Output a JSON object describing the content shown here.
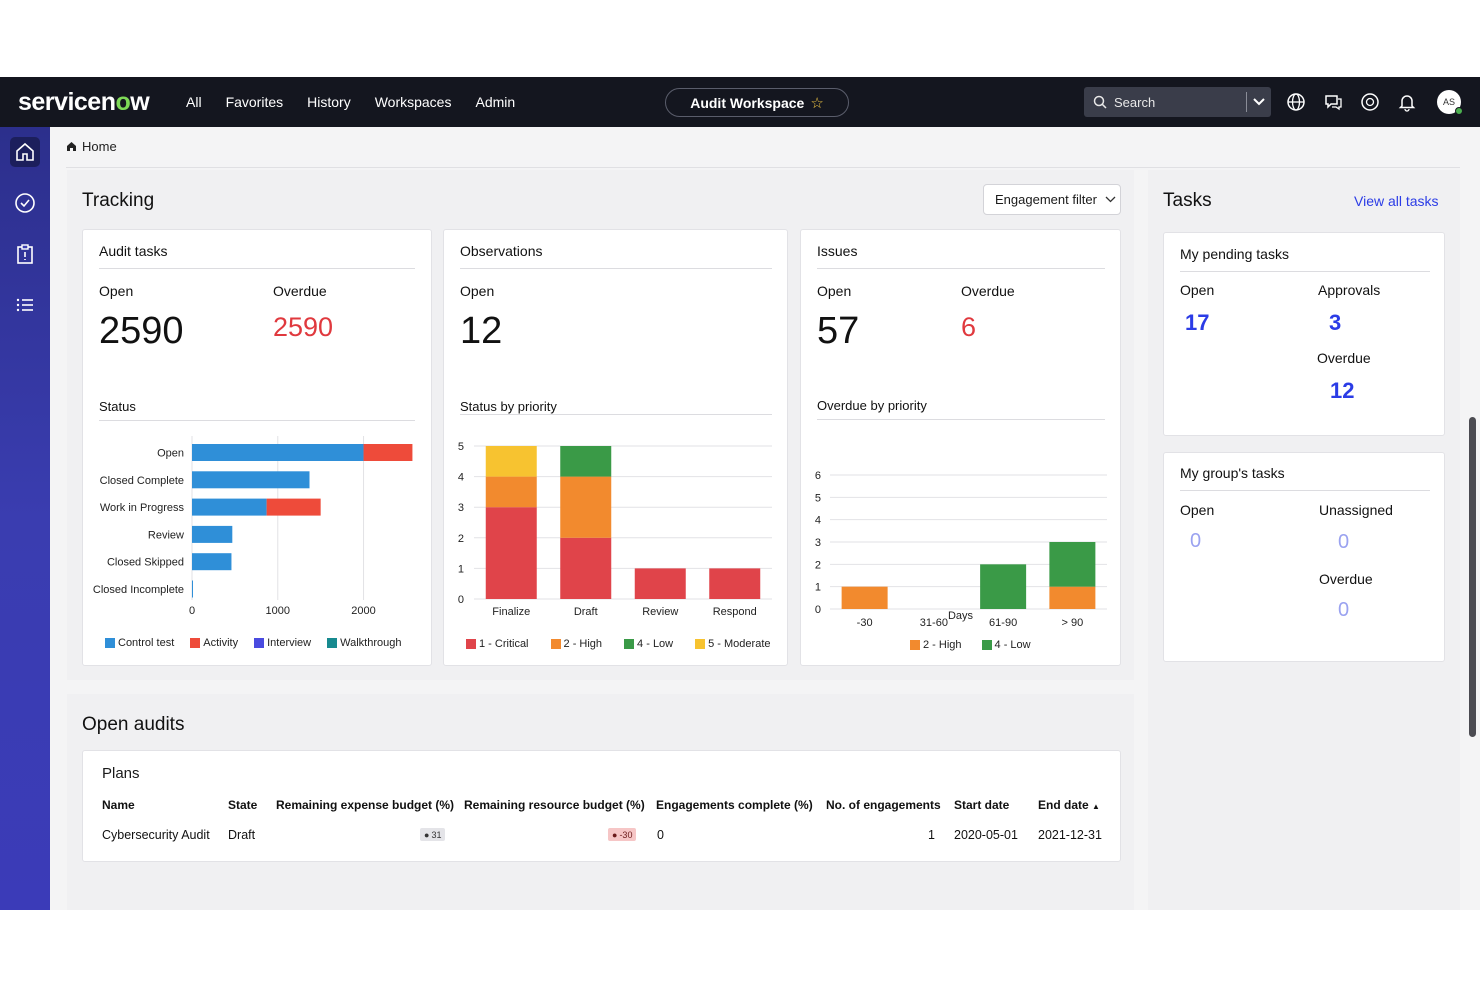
{
  "nav": {
    "logo_a": "servicen",
    "logo_o": "o",
    "logo_b": "w",
    "links": [
      "All",
      "Favorites",
      "History",
      "Workspaces",
      "Admin"
    ],
    "workspace": "Audit Workspace",
    "search_label": "Search",
    "avatar_initials": "AS"
  },
  "breadcrumb": {
    "home": "Home"
  },
  "tracking": {
    "title": "Tracking",
    "filter": "Engagement filter",
    "audit_tasks": {
      "title": "Audit tasks",
      "open_label": "Open",
      "open_value": "2590",
      "overdue_label": "Overdue",
      "overdue_value": "2590",
      "chart_title": "Status"
    },
    "observations": {
      "title": "Observations",
      "open_label": "Open",
      "open_value": "12",
      "chart_title": "Status by priority"
    },
    "issues": {
      "title": "Issues",
      "open_label": "Open",
      "open_value": "57",
      "overdue_label": "Overdue",
      "overdue_value": "6",
      "chart_title": "Overdue by priority"
    }
  },
  "tasks": {
    "title": "Tasks",
    "view_all": "View all tasks",
    "pending": {
      "title": "My pending tasks",
      "open_label": "Open",
      "open_value": "17",
      "approvals_label": "Approvals",
      "approvals_value": "3",
      "overdue_label": "Overdue",
      "overdue_value": "12"
    },
    "group": {
      "title": "My group's tasks",
      "open_label": "Open",
      "open_value": "0",
      "unassigned_label": "Unassigned",
      "unassigned_value": "0",
      "overdue_label": "Overdue",
      "overdue_value": "0"
    }
  },
  "open_audits": {
    "title": "Open audits",
    "plans_title": "Plans",
    "headers": [
      "Name",
      "State",
      "Remaining expense budget (%)",
      "Remaining resource budget (%)",
      "Engagements complete (%)",
      "No. of engagements",
      "Start date",
      "End date"
    ],
    "row": {
      "name": "Cybersecurity Audit",
      "state": "Draft",
      "expense": "31",
      "resource": "-30",
      "complete": "0",
      "engagements": "1",
      "start": "2020-05-01",
      "end": "2021-12-31"
    }
  },
  "colors": {
    "blue": "#2f8fd8",
    "red": "#ee4b3a",
    "critical": "#e0444a",
    "high": "#f28a2e",
    "low": "#3a9a47",
    "moderate": "#f7c330",
    "interview": "#4a4be0",
    "walkthrough": "#178a8f"
  },
  "chart_data": [
    {
      "type": "bar",
      "orientation": "horizontal",
      "title": "Status",
      "categories": [
        "Open",
        "Closed Complete",
        "Work in Progress",
        "Review",
        "Closed Skipped",
        "Closed Incomplete"
      ],
      "series": [
        {
          "name": "Control test",
          "values": [
            2000,
            1370,
            870,
            470,
            460,
            10
          ]
        },
        {
          "name": "Activity",
          "values": [
            570,
            0,
            630,
            0,
            0,
            0
          ]
        },
        {
          "name": "Interview",
          "values": [
            0,
            0,
            0,
            0,
            0,
            0
          ]
        },
        {
          "name": "Walkthrough",
          "values": [
            0,
            0,
            0,
            0,
            0,
            0
          ]
        }
      ],
      "x_ticks": [
        "0",
        "1000",
        "2000"
      ],
      "xlim": [
        0,
        2600
      ]
    },
    {
      "type": "bar",
      "stacked": true,
      "title": "Status by priority",
      "categories": [
        "Finalize",
        "Draft",
        "Review",
        "Respond"
      ],
      "series": [
        {
          "name": "1 - Critical",
          "values": [
            3,
            2,
            1,
            1
          ]
        },
        {
          "name": "2 - High",
          "values": [
            1,
            2,
            0,
            0
          ]
        },
        {
          "name": "4 - Low",
          "values": [
            0,
            1,
            0,
            0
          ]
        },
        {
          "name": "5 - Moderate",
          "values": [
            1,
            0,
            0,
            0
          ]
        }
      ],
      "y_ticks": [
        "0",
        "1",
        "2",
        "3",
        "4",
        "5"
      ],
      "ylim": [
        0,
        5
      ]
    },
    {
      "type": "bar",
      "stacked": true,
      "title": "Overdue by priority",
      "xlabel": "Days",
      "categories": [
        "-30",
        "31-60",
        "61-90",
        "> 90"
      ],
      "series": [
        {
          "name": "2 - High",
          "values": [
            1,
            0,
            0,
            1
          ]
        },
        {
          "name": "4 - Low",
          "values": [
            0,
            0,
            2,
            2
          ]
        }
      ],
      "y_ticks": [
        "0",
        "1",
        "2",
        "3",
        "4",
        "5",
        "6"
      ],
      "ylim": [
        0,
        6
      ]
    }
  ]
}
